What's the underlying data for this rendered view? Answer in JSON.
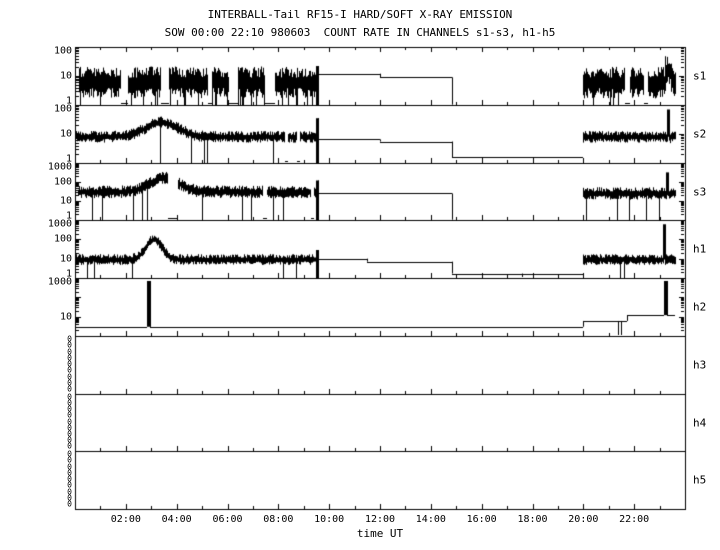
{
  "chart_data": {
    "type": "line",
    "title": "INTERBALL-Tail RF15-I HARD/SOFT X-RAY EMISSION",
    "subtitle": "SOW 00:00 22:10 980603  COUNT RATE IN CHANNELS s1-s3, h1-h5",
    "xlabel": "time UT",
    "x_unit": "hours UT",
    "x_range_hours": [
      0,
      24
    ],
    "x_major_tick_hours": [
      2,
      4,
      6,
      8,
      10,
      12,
      14,
      16,
      18,
      20,
      22
    ],
    "x_tick_labels": [
      "02:00",
      "04:00",
      "06:00",
      "08:00",
      "10:00",
      "12:00",
      "14:00",
      "16:00",
      "18:00",
      "20:00",
      "22:00"
    ],
    "x_minor_tick_step_hours": 1,
    "grid": false,
    "legend": "none",
    "line_color": "#000000",
    "background_color": "#ffffff",
    "panels": [
      {
        "label": "s1",
        "y_scale": "log",
        "y_range": [
          1,
          100
        ],
        "y_ticks": [
          {
            "v": 100,
            "label": "100"
          },
          {
            "v": 10,
            "label": "10"
          },
          {
            "v": 1,
            "label": "1"
          }
        ],
        "segments": [
          {
            "kind": "noise",
            "t": [
              0.15,
              9.5
            ],
            "base": 6,
            "spread": 0.55,
            "drop_p": 0.12,
            "gap_p": 0.03
          },
          {
            "kind": "spike",
            "t": [
              9.5,
              9.56
            ],
            "peak": 22,
            "floor": 1
          },
          {
            "kind": "flat",
            "t": [
              9.56,
              12.0
            ],
            "level": 12
          },
          {
            "kind": "flat",
            "t": [
              12.0,
              14.85
            ],
            "level": 9
          },
          {
            "kind": "flat",
            "t": [
              14.85,
              20.0
            ],
            "level": 1.03
          },
          {
            "kind": "noise",
            "t": [
              20.0,
              23.2
            ],
            "base": 6,
            "spread": 0.55,
            "drop_p": 0.12,
            "gap_p": 0.02
          },
          {
            "kind": "noise",
            "t": [
              23.2,
              23.45
            ],
            "base": 16,
            "spread": 0.5,
            "drop_p": 0.05
          },
          {
            "kind": "noise",
            "t": [
              23.45,
              23.62
            ],
            "base": 6,
            "spread": 0.5,
            "drop_p": 0.1
          }
        ]
      },
      {
        "label": "s2",
        "y_scale": "log",
        "y_range": [
          1,
          100
        ],
        "y_ticks": [
          {
            "v": 100,
            "label": "100"
          },
          {
            "v": 10,
            "label": "10"
          },
          {
            "v": 1,
            "label": "1"
          }
        ],
        "segments": [
          {
            "kind": "noise",
            "t": [
              0.05,
              9.5
            ],
            "base": 8,
            "spread": 0.2,
            "drop_p": 0.015,
            "gap_p": 0.004,
            "bumps": [
              {
                "c": 3.4,
                "w": 0.9,
                "a": 0.5
              }
            ]
          },
          {
            "kind": "spike",
            "t": [
              9.5,
              9.56
            ],
            "peak": 35,
            "floor": 1
          },
          {
            "kind": "flat",
            "t": [
              9.56,
              12.0
            ],
            "level": 6.5
          },
          {
            "kind": "flat",
            "t": [
              12.0,
              14.85
            ],
            "level": 5.5
          },
          {
            "kind": "flat",
            "t": [
              14.85,
              20.0
            ],
            "level": 1.6
          },
          {
            "kind": "noise",
            "t": [
              20.0,
              23.3
            ],
            "base": 8,
            "spread": 0.2,
            "drop_p": 0.01
          },
          {
            "kind": "spike",
            "t": [
              23.3,
              23.38
            ],
            "peak": 70,
            "floor": 8
          },
          {
            "kind": "noise",
            "t": [
              23.38,
              23.62
            ],
            "base": 8,
            "spread": 0.22
          }
        ]
      },
      {
        "label": "s3",
        "y_scale": "log",
        "y_range": [
          1,
          1000
        ],
        "y_ticks": [
          {
            "v": 1000,
            "label": "1000"
          },
          {
            "v": 100,
            "label": "100"
          },
          {
            "v": 10,
            "label": "10"
          },
          {
            "v": 1,
            "label": "1"
          }
        ],
        "segments": [
          {
            "kind": "noise",
            "t": [
              0.1,
              9.5
            ],
            "base": 30,
            "spread": 0.33,
            "drop_p": 0.06,
            "gap_p": 0.015,
            "bumps": [
              {
                "c": 3.5,
                "w": 0.8,
                "a": 0.75
              }
            ]
          },
          {
            "kind": "spike",
            "t": [
              9.5,
              9.56
            ],
            "peak": 120,
            "floor": 1
          },
          {
            "kind": "flat",
            "t": [
              9.56,
              14.85
            ],
            "level": 25
          },
          {
            "kind": "flat",
            "t": [
              14.85,
              20.0
            ],
            "level": 1.04
          },
          {
            "kind": "noise",
            "t": [
              20.0,
              23.25
            ],
            "base": 25,
            "spread": 0.33,
            "drop_p": 0.03
          },
          {
            "kind": "spike",
            "t": [
              23.25,
              23.33
            ],
            "peak": 320,
            "floor": 20
          },
          {
            "kind": "noise",
            "t": [
              23.33,
              23.62
            ],
            "base": 25,
            "spread": 0.3
          }
        ]
      },
      {
        "label": "h1",
        "y_scale": "log",
        "y_range": [
          1,
          1000
        ],
        "y_ticks": [
          {
            "v": 1000,
            "label": "1000"
          },
          {
            "v": 100,
            "label": "100"
          },
          {
            "v": 10,
            "label": "10"
          },
          {
            "v": 1,
            "label": "1"
          }
        ],
        "segments": [
          {
            "kind": "noise",
            "t": [
              0.05,
              9.5
            ],
            "base": 9,
            "spread": 0.28,
            "drop_p": 0.008,
            "bumps": [
              {
                "c": 3.1,
                "w": 0.45,
                "a": 1.05
              }
            ],
            "drops_at": [
              8.2,
              8.7
            ]
          },
          {
            "kind": "spike",
            "t": [
              9.5,
              9.56
            ],
            "peak": 28,
            "floor": 1
          },
          {
            "kind": "flat",
            "t": [
              9.56,
              11.5
            ],
            "level": 10
          },
          {
            "kind": "flat",
            "t": [
              11.5,
              14.85
            ],
            "level": 7
          },
          {
            "kind": "flat",
            "t": [
              14.85,
              20.0
            ],
            "level": 1.7,
            "down_ticks": [
              17.6
            ]
          },
          {
            "kind": "noise",
            "t": [
              20.0,
              23.12
            ],
            "base": 9,
            "spread": 0.28,
            "drops_at": [
              21.45,
              21.6
            ]
          },
          {
            "kind": "spike",
            "t": [
              23.12,
              23.2
            ],
            "peak": 600,
            "floor": 9
          },
          {
            "kind": "noise",
            "t": [
              23.2,
              23.62
            ],
            "base": 9,
            "spread": 0.28
          }
        ]
      },
      {
        "label": "h2",
        "y_scale": "log",
        "y_range": [
          1,
          1000
        ],
        "y_ticks": [
          {
            "v": 1000,
            "label": "1000"
          },
          {
            "v": 10,
            "label": "10"
          }
        ],
        "segments": [
          {
            "kind": "flat",
            "t": [
              0.05,
              2.85
            ],
            "level": 3
          },
          {
            "kind": "spike",
            "t": [
              2.85,
              2.97
            ],
            "peak": 700,
            "floor": 3
          },
          {
            "kind": "flat",
            "t": [
              2.97,
              20.0
            ],
            "level": 3
          },
          {
            "kind": "flat",
            "t": [
              20.0,
              21.7
            ],
            "level": 6,
            "down_ticks": [
              21.35,
              21.5
            ]
          },
          {
            "kind": "flat",
            "t": [
              21.7,
              23.18
            ],
            "level": 12
          },
          {
            "kind": "spike",
            "t": [
              23.18,
              23.3
            ],
            "peak": 700,
            "floor": 12
          },
          {
            "kind": "flat",
            "t": [
              23.3,
              23.62
            ],
            "level": 12
          }
        ]
      },
      {
        "label": "h3",
        "y_scale": "linear",
        "y_range": [
          0,
          1
        ],
        "y_ticks": [
          {
            "v": null,
            "label": "0"
          },
          {
            "v": null,
            "label": "0"
          },
          {
            "v": null,
            "label": "0"
          },
          {
            "v": null,
            "label": "0"
          },
          {
            "v": null,
            "label": "0"
          },
          {
            "v": null,
            "label": "0"
          },
          {
            "v": null,
            "label": "0"
          },
          {
            "v": null,
            "label": "0"
          },
          {
            "v": null,
            "label": "0"
          }
        ],
        "segments": []
      },
      {
        "label": "h4",
        "y_scale": "linear",
        "y_range": [
          0,
          1
        ],
        "y_ticks": [
          {
            "v": null,
            "label": "0"
          },
          {
            "v": null,
            "label": "0"
          },
          {
            "v": null,
            "label": "0"
          },
          {
            "v": null,
            "label": "0"
          },
          {
            "v": null,
            "label": "0"
          },
          {
            "v": null,
            "label": "0"
          },
          {
            "v": null,
            "label": "0"
          },
          {
            "v": null,
            "label": "0"
          },
          {
            "v": null,
            "label": "0"
          }
        ],
        "segments": []
      },
      {
        "label": "h5",
        "y_scale": "linear",
        "y_range": [
          0,
          1
        ],
        "y_ticks": [
          {
            "v": null,
            "label": "0"
          },
          {
            "v": null,
            "label": "0"
          },
          {
            "v": null,
            "label": "0"
          },
          {
            "v": null,
            "label": "0"
          },
          {
            "v": null,
            "label": "0"
          },
          {
            "v": null,
            "label": "0"
          },
          {
            "v": null,
            "label": "0"
          },
          {
            "v": null,
            "label": "0"
          },
          {
            "v": null,
            "label": "0"
          }
        ],
        "segments": []
      }
    ]
  }
}
